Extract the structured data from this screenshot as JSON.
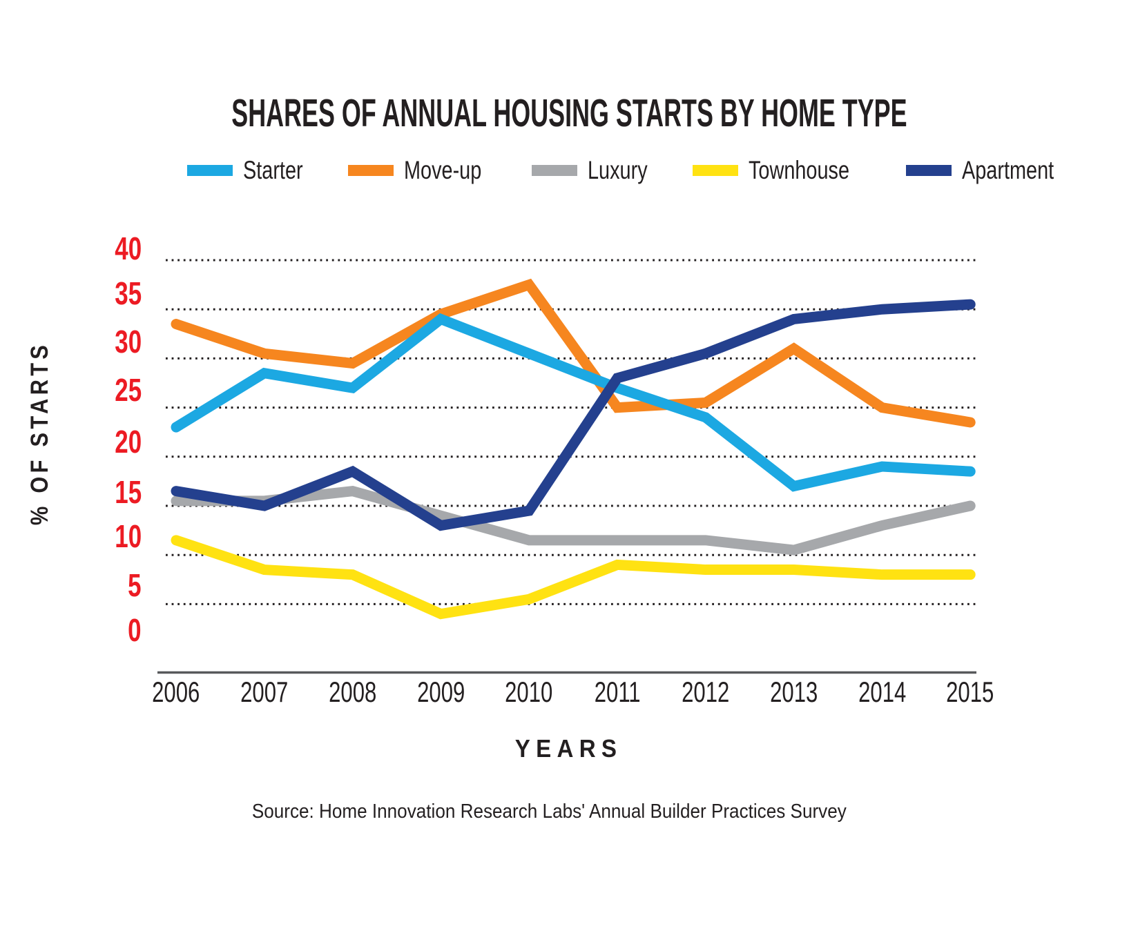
{
  "chart": {
    "title": "SHARES OF ANNUAL HOUSING STARTS BY HOME TYPE",
    "ylabel": "% OF STARTS",
    "xlabel": "YEARS",
    "source": "Source: Home Innovation Research Labs' Annual Builder Practices Survey",
    "y_ticks": [
      "40",
      "35",
      "30",
      "25",
      "20",
      "15",
      "10",
      "5",
      "0"
    ]
  },
  "chart_data": {
    "type": "line",
    "title": "SHARES OF ANNUAL HOUSING STARTS BY HOME TYPE",
    "xlabel": "YEARS",
    "ylabel": "% OF STARTS",
    "categories": [
      "2006",
      "2007",
      "2008",
      "2009",
      "2010",
      "2011",
      "2012",
      "2013",
      "2014",
      "2015"
    ],
    "series": [
      {
        "name": "Starter",
        "color": "#1CA8E2",
        "values": [
          23,
          28.5,
          27,
          34,
          30.5,
          27,
          24,
          17,
          19,
          18.5
        ]
      },
      {
        "name": "Move-up",
        "color": "#F6861F",
        "values": [
          33.5,
          30.5,
          29.5,
          34.5,
          37.5,
          25,
          25.5,
          31,
          25,
          23.5
        ]
      },
      {
        "name": "Luxury",
        "color": "#A6A8AB",
        "values": [
          15.5,
          15.5,
          16.5,
          14,
          11.5,
          11.5,
          11.5,
          10.5,
          13,
          15
        ]
      },
      {
        "name": "Townhouse",
        "color": "#FFE212",
        "values": [
          11.5,
          8.5,
          8,
          4,
          5.5,
          9,
          8.5,
          8.5,
          8,
          8
        ]
      },
      {
        "name": "Apartment",
        "color": "#24408E",
        "values": [
          16.5,
          15,
          18.5,
          13,
          14.5,
          28,
          30.5,
          34,
          35,
          35.5
        ]
      }
    ],
    "ylim": [
      0,
      40
    ],
    "ytick_interval": 5,
    "grid": "dotted horizontal gridlines at values 5 through 40",
    "legend_position": "top",
    "tick_label_color": "#EC1B23",
    "text_color": "#231F20",
    "axis_line_color": "#58595B"
  }
}
